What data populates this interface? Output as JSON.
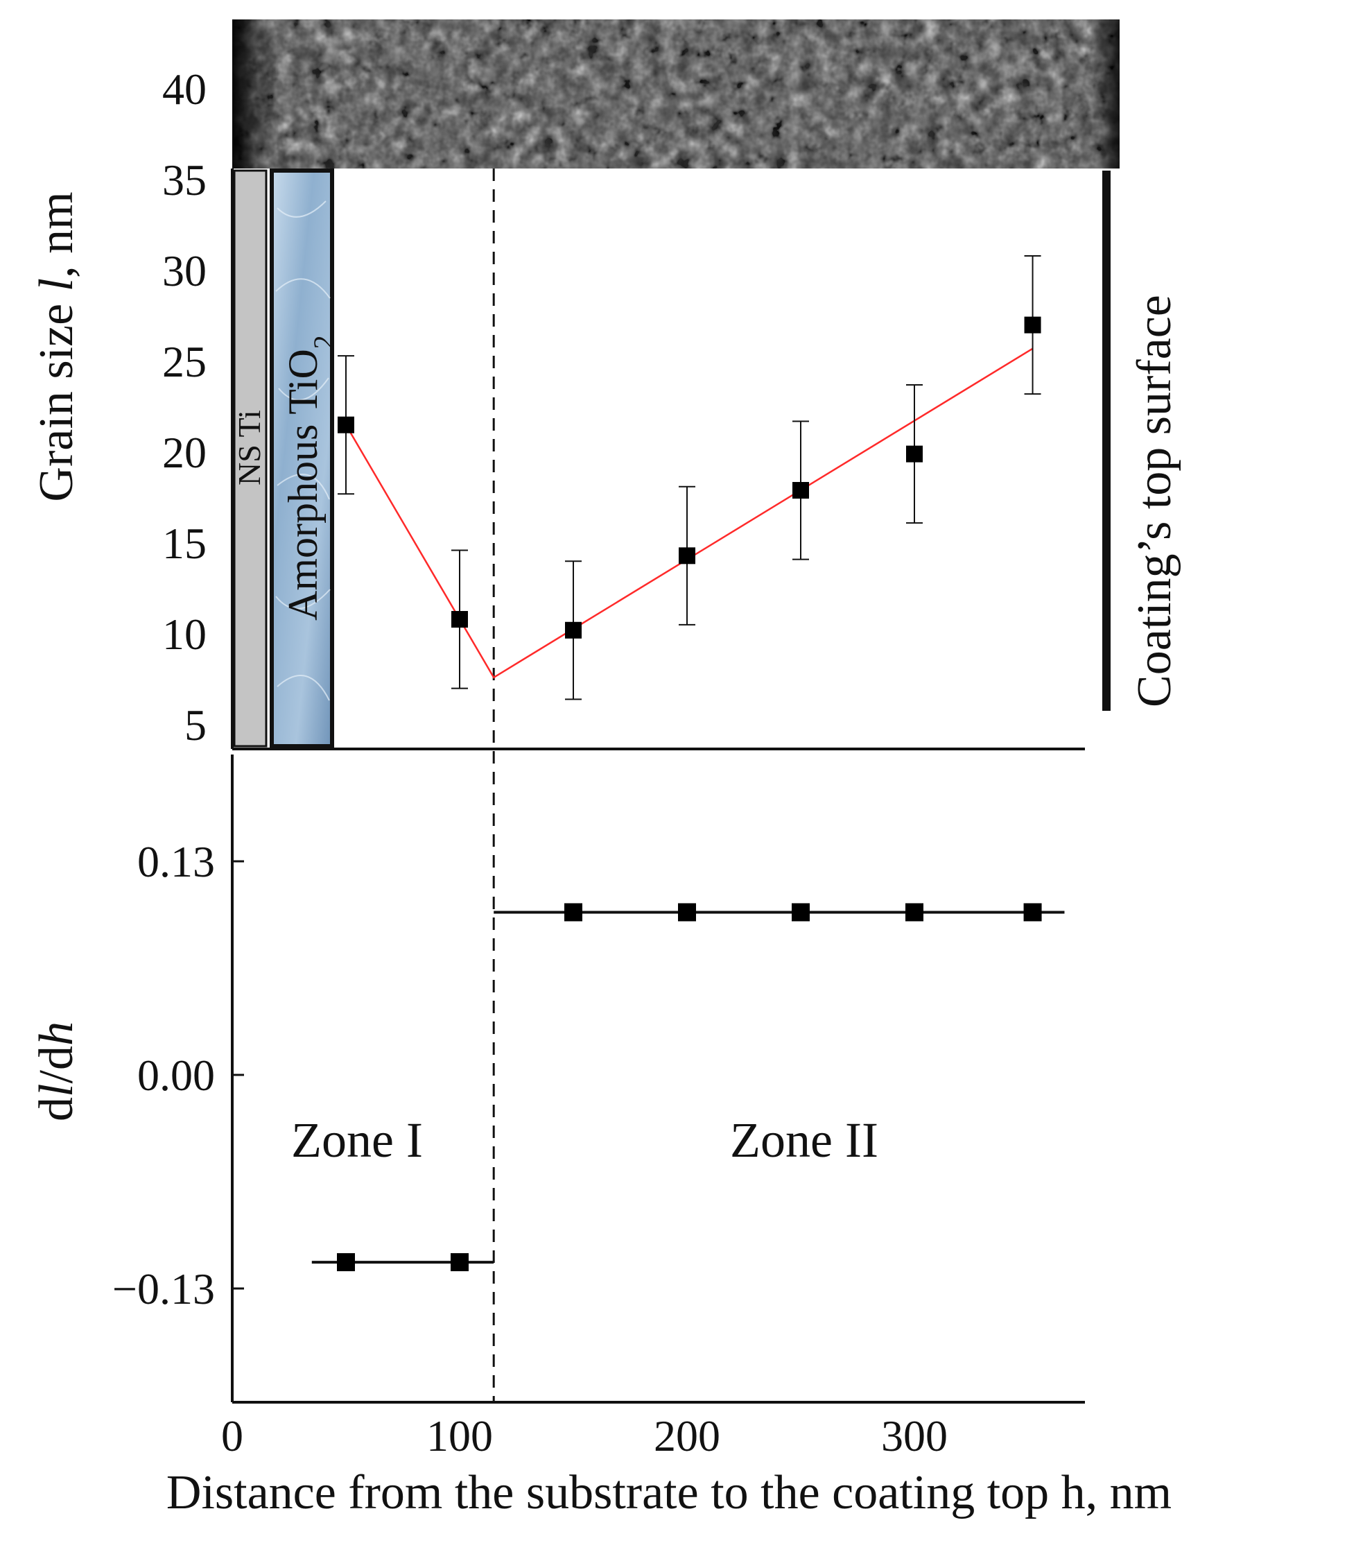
{
  "chart_data": [
    {
      "id": "top",
      "type": "scatter",
      "ylabel_parts": [
        "Grain size ",
        "l",
        ", nm"
      ],
      "ylim": [
        3,
        43
      ],
      "yticks": [
        5,
        10,
        15,
        20,
        25,
        30,
        35,
        40
      ],
      "xlim": [
        0,
        375
      ],
      "points": [
        {
          "x": 50,
          "y": 21.5,
          "err": 3.8
        },
        {
          "x": 100,
          "y": 10.8,
          "err": 3.8
        },
        {
          "x": 150,
          "y": 10.2,
          "err": 3.8
        },
        {
          "x": 200,
          "y": 14.3,
          "err": 3.8
        },
        {
          "x": 250,
          "y": 17.9,
          "err": 3.8
        },
        {
          "x": 300,
          "y": 19.9,
          "err": 3.8
        },
        {
          "x": 352,
          "y": 27,
          "err": 3.8
        }
      ],
      "fit_line": [
        {
          "x": 50,
          "y": 21.5
        },
        {
          "x": 115,
          "y": 7.6
        },
        {
          "x": 352,
          "y": 25.7
        }
      ],
      "fit_color": "#ff2a2a",
      "labels": {
        "ns_ti": "NS Ti",
        "amorphous_main": "Amorphous TiO",
        "amorphous_sub": "2",
        "top_surface": "Coating’s top surface"
      }
    },
    {
      "id": "bottom",
      "type": "scatter",
      "ylabel_parts": [
        "d",
        "l",
        "/d",
        "h"
      ],
      "ylim": [
        -0.195,
        0.195
      ],
      "yticks": [
        0.13,
        0.0,
        -0.13
      ],
      "ytick_labels": [
        "0.13",
        "0.00",
        "−0.13"
      ],
      "xlim": [
        0,
        375
      ],
      "xticks": [
        0,
        100,
        200,
        300
      ],
      "xlabel": "Distance from the substrate to the coating top h, nm",
      "series": [
        {
          "name": "Zone I",
          "x": [
            50,
            100
          ],
          "y": [
            -0.114,
            -0.114
          ],
          "line_x": [
            35,
            115
          ]
        },
        {
          "name": "Zone II",
          "x": [
            150,
            200,
            250,
            300,
            352
          ],
          "y": [
            0.099,
            0.099,
            0.099,
            0.099,
            0.099
          ],
          "line_x": [
            115,
            366
          ]
        }
      ],
      "zone_labels": [
        "Zone I",
        "Zone II"
      ],
      "zone_boundary_x": 115
    }
  ]
}
